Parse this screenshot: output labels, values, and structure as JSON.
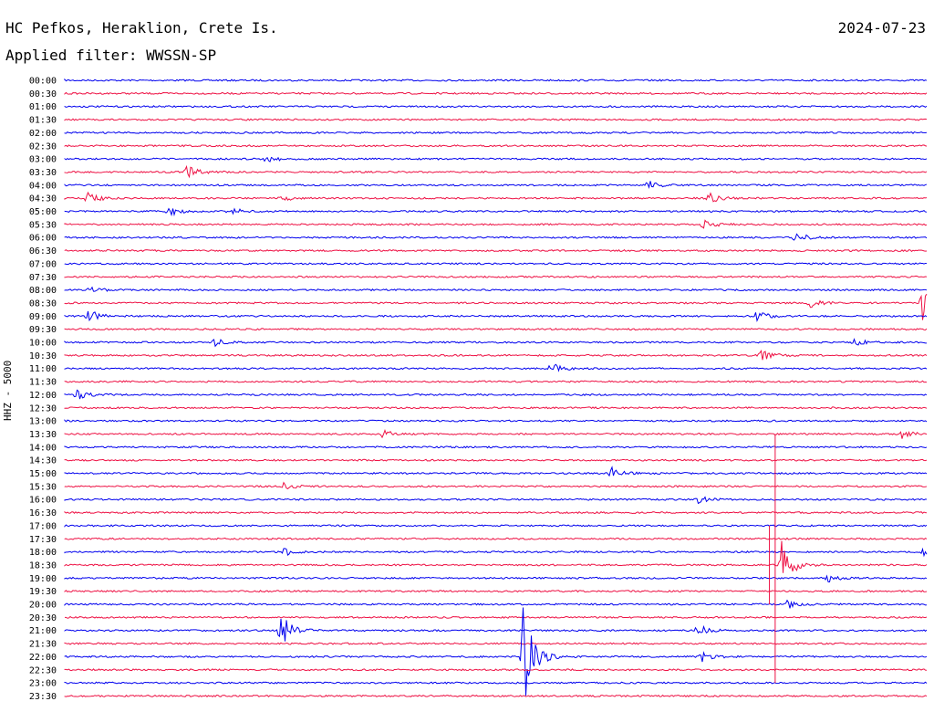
{
  "header": {
    "station": "HC Pefkos, Heraklion, Crete Is.",
    "date": "2024-07-23",
    "filter": "Applied filter: WWSSN-SP"
  },
  "chart_data": {
    "type": "line",
    "ylabel": "HHZ - 5000",
    "colors": {
      "odd_trace": "#0000ee",
      "even_trace": "#ee1144"
    },
    "row_labels": [
      "00:00",
      "00:30",
      "01:00",
      "01:30",
      "02:00",
      "02:30",
      "03:00",
      "03:30",
      "04:00",
      "04:30",
      "05:00",
      "05:30",
      "06:00",
      "06:30",
      "07:00",
      "07:30",
      "08:00",
      "08:30",
      "09:00",
      "09:30",
      "10:00",
      "10:30",
      "11:00",
      "11:30",
      "12:00",
      "12:30",
      "13:00",
      "13:30",
      "14:00",
      "14:30",
      "15:00",
      "15:30",
      "16:00",
      "16:30",
      "17:00",
      "17:30",
      "18:00",
      "18:30",
      "19:00",
      "19:30",
      "20:00",
      "20:30",
      "21:00",
      "21:30",
      "22:00",
      "22:30",
      "23:00",
      "23:30"
    ],
    "x_range_minutes": [
      0,
      30
    ],
    "events": [
      {
        "row": 6,
        "minute": 7.0,
        "amp": 0.3
      },
      {
        "row": 7,
        "minute": 4.2,
        "amp": 0.55
      },
      {
        "row": 8,
        "minute": 20.3,
        "amp": 0.35
      },
      {
        "row": 9,
        "minute": 0.8,
        "amp": 0.45
      },
      {
        "row": 9,
        "minute": 7.5,
        "amp": 0.25
      },
      {
        "row": 9,
        "minute": 22.4,
        "amp": 0.45
      },
      {
        "row": 10,
        "minute": 3.6,
        "amp": 0.4
      },
      {
        "row": 10,
        "minute": 5.7,
        "amp": 0.35
      },
      {
        "row": 11,
        "minute": 22.2,
        "amp": 0.4
      },
      {
        "row": 12,
        "minute": 25.4,
        "amp": 0.45
      },
      {
        "row": 16,
        "minute": 0.9,
        "amp": 0.25
      },
      {
        "row": 17,
        "minute": 25.9,
        "amp": 0.35
      },
      {
        "row": 17,
        "minute": 29.8,
        "amp": 1.5
      },
      {
        "row": 18,
        "minute": 0.8,
        "amp": 0.55
      },
      {
        "row": 18,
        "minute": 24.0,
        "amp": 0.55
      },
      {
        "row": 20,
        "minute": 5.1,
        "amp": 0.4
      },
      {
        "row": 20,
        "minute": 27.4,
        "amp": 0.35
      },
      {
        "row": 21,
        "minute": 24.2,
        "amp": 0.45
      },
      {
        "row": 22,
        "minute": 16.9,
        "amp": 0.45
      },
      {
        "row": 24,
        "minute": 0.4,
        "amp": 0.5
      },
      {
        "row": 27,
        "minute": 11.0,
        "amp": 0.45
      },
      {
        "row": 27,
        "minute": 29.1,
        "amp": 0.4
      },
      {
        "row": 30,
        "minute": 19.0,
        "amp": 0.45
      },
      {
        "row": 31,
        "minute": 7.6,
        "amp": 0.3
      },
      {
        "row": 32,
        "minute": 22.0,
        "amp": 0.3
      },
      {
        "row": 36,
        "minute": 7.6,
        "amp": 0.3
      },
      {
        "row": 36,
        "minute": 29.8,
        "amp": 0.4
      },
      {
        "row": 37,
        "minute": 24.9,
        "amp": 2.0
      },
      {
        "row": 38,
        "minute": 26.5,
        "amp": 0.35
      },
      {
        "row": 40,
        "minute": 25.1,
        "amp": 0.35
      },
      {
        "row": 42,
        "minute": 7.5,
        "amp": 1.4
      },
      {
        "row": 42,
        "minute": 22.0,
        "amp": 0.45
      },
      {
        "row": 44,
        "minute": 15.9,
        "amp": 4.5
      },
      {
        "row": 44,
        "minute": 22.1,
        "amp": 0.45
      }
    ],
    "spikes": [
      {
        "from_row": 27,
        "to_row": 46,
        "minute": 24.7
      },
      {
        "from_row": 34,
        "to_row": 40,
        "minute": 24.5
      }
    ],
    "grid": false,
    "legend": "none"
  }
}
